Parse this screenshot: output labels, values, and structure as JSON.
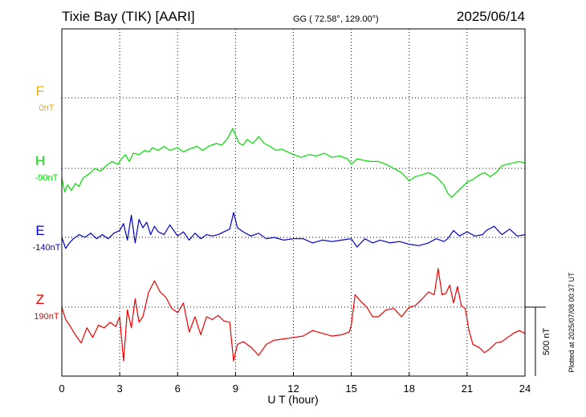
{
  "header": {
    "station": "Tixie Bay (TIK)  [AARI]",
    "coords": "GG ( 72.58°, 129.00°)",
    "date": "2025/06/14"
  },
  "footer": {
    "plotted": "Plotted at 2025/07/08 00:37 UT"
  },
  "chart_data": {
    "type": "line",
    "xlabel": "U T (hour)",
    "xlim": [
      0,
      24
    ],
    "xticks": [
      "0",
      "3",
      "6",
      "9",
      "12",
      "15",
      "18",
      "21",
      "24"
    ],
    "grid": true,
    "scale_bar": "500 nT",
    "series": [
      {
        "name": "F",
        "baseline": "0nT",
        "color": "#f5a800",
        "x": [],
        "y": []
      },
      {
        "name": "H",
        "baseline": "-90nT",
        "color": "#00dd00",
        "x": [
          0,
          0.15,
          0.3,
          0.5,
          0.7,
          0.9,
          1.1,
          1.3,
          1.5,
          1.7,
          2.0,
          2.3,
          2.6,
          2.9,
          3.1,
          3.3,
          3.5,
          3.7,
          4.0,
          4.3,
          4.5,
          4.7,
          5.0,
          5.3,
          5.6,
          6.0,
          6.3,
          6.6,
          7.0,
          7.3,
          7.6,
          8.0,
          8.3,
          8.6,
          8.85,
          9.0,
          9.2,
          9.4,
          9.6,
          9.9,
          10.2,
          10.5,
          10.8,
          11.1,
          11.4,
          11.7,
          12.0,
          12.4,
          12.8,
          13.2,
          13.6,
          14.0,
          14.4,
          14.8,
          15.0,
          15.3,
          15.6,
          16.0,
          16.4,
          16.8,
          17.2,
          17.6,
          18.0,
          18.3,
          18.6,
          19.0,
          19.4,
          19.8,
          20.0,
          20.2,
          20.4,
          20.7,
          21.0,
          21.3,
          21.6,
          21.9,
          22.2,
          22.5,
          22.8,
          23.1,
          23.4,
          23.7,
          24.0
        ],
        "y": [
          -160,
          -260,
          -210,
          -250,
          -200,
          -220,
          -160,
          -140,
          -120,
          -90,
          -110,
          -70,
          -40,
          -60,
          -20,
          10,
          -40,
          20,
          10,
          40,
          30,
          60,
          40,
          70,
          40,
          60,
          30,
          50,
          70,
          40,
          70,
          90,
          80,
          130,
          200,
          150,
          90,
          80,
          120,
          90,
          140,
          90,
          70,
          40,
          50,
          30,
          10,
          -10,
          10,
          0,
          20,
          -10,
          0,
          -20,
          -60,
          -20,
          -30,
          -40,
          -40,
          -60,
          -90,
          -120,
          -180,
          -150,
          -140,
          -120,
          -150,
          -210,
          -270,
          -300,
          -270,
          -230,
          -190,
          -170,
          -140,
          -120,
          -150,
          -120,
          -70,
          -60,
          -50,
          -40,
          -50
        ]
      },
      {
        "name": "E",
        "baseline": "-140nT",
        "color": "#0000cc",
        "x": [
          0,
          0.2,
          0.4,
          0.6,
          0.9,
          1.2,
          1.5,
          1.8,
          2.1,
          2.4,
          2.7,
          3.0,
          3.2,
          3.4,
          3.6,
          3.8,
          4.0,
          4.2,
          4.4,
          4.6,
          4.8,
          5.0,
          5.3,
          5.6,
          6.0,
          6.3,
          6.6,
          6.9,
          7.2,
          7.5,
          7.8,
          8.1,
          8.4,
          8.7,
          8.9,
          9.1,
          9.4,
          9.8,
          10.2,
          10.6,
          11.0,
          11.5,
          12.0,
          12.5,
          13.0,
          13.5,
          14.0,
          14.5,
          15.0,
          15.3,
          15.7,
          16.1,
          16.5,
          17.0,
          17.5,
          18.0,
          18.5,
          19.0,
          19.4,
          19.8,
          20.0,
          20.3,
          20.6,
          21.0,
          21.4,
          21.8,
          22.0,
          22.4,
          22.8,
          23.2,
          23.6,
          24.0
        ],
        "y": [
          -140,
          -220,
          -180,
          -150,
          -120,
          -140,
          -110,
          -150,
          -120,
          -150,
          -110,
          -90,
          -40,
          -160,
          20,
          -180,
          -10,
          -70,
          -30,
          -120,
          -60,
          -100,
          -120,
          -50,
          -130,
          -100,
          -160,
          -110,
          -150,
          -120,
          -130,
          -120,
          -100,
          -80,
          40,
          -70,
          -100,
          -130,
          -110,
          -150,
          -140,
          -160,
          -150,
          -150,
          -180,
          -160,
          -170,
          -160,
          -150,
          -210,
          -150,
          -180,
          -160,
          -180,
          -170,
          -190,
          -200,
          -180,
          -150,
          -170,
          -150,
          -90,
          -130,
          -100,
          -130,
          -120,
          -90,
          -60,
          -120,
          -80,
          -130,
          -120
        ]
      },
      {
        "name": "Z",
        "baseline": "190nT",
        "color": "#ee0000",
        "x": [
          0,
          0.2,
          0.4,
          0.7,
          1.0,
          1.3,
          1.6,
          1.9,
          2.2,
          2.5,
          2.8,
          3.0,
          3.2,
          3.4,
          3.6,
          3.8,
          4.0,
          4.2,
          4.5,
          4.8,
          5.1,
          5.4,
          5.7,
          6.0,
          6.3,
          6.6,
          6.9,
          7.2,
          7.5,
          7.8,
          8.1,
          8.4,
          8.7,
          8.9,
          9.1,
          9.4,
          9.8,
          10.2,
          10.6,
          11.0,
          11.5,
          12.0,
          12.5,
          13.0,
          13.5,
          14.0,
          14.5,
          14.9,
          15.0,
          15.2,
          15.5,
          15.8,
          16.1,
          16.4,
          16.8,
          17.2,
          17.6,
          18.0,
          18.3,
          18.6,
          19.0,
          19.3,
          19.5,
          19.7,
          19.9,
          20.1,
          20.3,
          20.5,
          20.7,
          20.9,
          21.1,
          21.3,
          21.6,
          21.9,
          22.2,
          22.5,
          22.8,
          23.1,
          23.4,
          23.7,
          24.0
        ],
        "y": [
          190,
          100,
          60,
          -10,
          -70,
          40,
          -30,
          60,
          40,
          80,
          50,
          120,
          -200,
          170,
          40,
          250,
          80,
          120,
          300,
          380,
          300,
          260,
          180,
          150,
          220,
          10,
          120,
          -10,
          120,
          100,
          130,
          90,
          80,
          -200,
          -80,
          -60,
          -100,
          -160,
          -80,
          -50,
          -40,
          -30,
          -20,
          20,
          0,
          -20,
          -10,
          10,
          60,
          280,
          230,
          190,
          120,
          120,
          170,
          180,
          120,
          190,
          200,
          240,
          300,
          280,
          470,
          280,
          290,
          350,
          220,
          340,
          200,
          180,
          20,
          -80,
          -100,
          -140,
          -110,
          -70,
          -60,
          -30,
          0,
          20,
          0
        ]
      }
    ]
  }
}
